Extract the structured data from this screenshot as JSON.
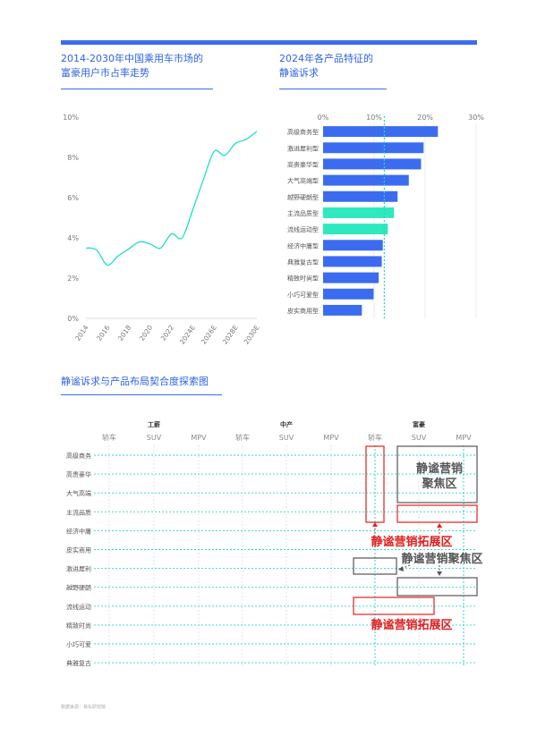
{
  "page": {
    "source_note": "数据来源：易车研究院"
  },
  "chart_data": [
    {
      "type": "line",
      "title": "2014-2030年中国乘用车市场的富豪用户市占率走势",
      "title_lines": [
        "2014-2030年中国乘用车市场的",
        "富豪用户市占率走势"
      ],
      "x_ticks": [
        "2014",
        "2016",
        "2018",
        "2020",
        "2022",
        "2024E",
        "2026E",
        "2028E",
        "2030E"
      ],
      "y_ticks": [
        "0%",
        "2%",
        "4%",
        "6%",
        "8%",
        "10%"
      ],
      "ylim": [
        0,
        10
      ],
      "color": "#1ee0c0",
      "points": [
        [
          2014,
          3.5
        ],
        [
          2015,
          3.4
        ],
        [
          2016,
          2.65
        ],
        [
          2017,
          3.1
        ],
        [
          2018,
          3.45
        ],
        [
          2019,
          3.8
        ],
        [
          2020,
          3.7
        ],
        [
          2021,
          3.5
        ],
        [
          2022,
          4.2
        ],
        [
          2023,
          4.0
        ],
        [
          2024,
          5.4
        ],
        [
          2025,
          6.9
        ],
        [
          2026,
          8.3
        ],
        [
          2027,
          8.1
        ],
        [
          2028,
          8.7
        ],
        [
          2029,
          8.9
        ],
        [
          2030,
          9.3
        ]
      ]
    },
    {
      "type": "bar",
      "orientation": "horizontal",
      "title": "2024年各产品特征的静谧诉求",
      "title_lines": [
        "2024年各产品特征的",
        "静谧诉求"
      ],
      "x_ticks": [
        "0%",
        "10%",
        "20%",
        "30%"
      ],
      "xlim": [
        0,
        30
      ],
      "reference_line": 12,
      "default_color": "#3b6cf0",
      "highlight_color": "#2ee8c0",
      "categories": [
        "高级商务型",
        "激进犀利型",
        "高贵豪华型",
        "大气高端型",
        "越野硬朗型",
        "主流品质型",
        "流线运动型",
        "经济中庸型",
        "典雅复古型",
        "精致时尚型",
        "小巧可爱型",
        "皮实商用型"
      ],
      "values": [
        22.5,
        19.7,
        19.2,
        16.8,
        14.6,
        13.9,
        12.7,
        11.7,
        11.5,
        10.9,
        9.9,
        7.6
      ],
      "highlighted": [
        false,
        false,
        false,
        false,
        false,
        true,
        true,
        false,
        false,
        false,
        false,
        false
      ]
    },
    {
      "type": "table",
      "title": "静谧诉求与产品布局契合度探索图",
      "groups": [
        "工薪",
        "中产",
        "富豪"
      ],
      "columns": [
        "轿车",
        "SUV",
        "MPV",
        "轿车",
        "SUV",
        "MPV",
        "轿车",
        "SUV",
        "MPV"
      ],
      "rows": [
        "高级商务",
        "高贵豪华",
        "大气高端",
        "主流品质",
        "经济中庸",
        "皮实商用",
        "激进犀利",
        "越野硬朗",
        "流线运动",
        "精致时尚",
        "小巧可爱",
        "典雅复古"
      ],
      "annotations": {
        "focus_top": "静谧营销聚焦区",
        "focus_top_lines": [
          "静谧营销",
          "聚焦区"
        ],
        "expand_top": "静谧营销拓展区",
        "focus_mid": "静谧营销聚焦区",
        "expand_bottom": "静谧营销拓展区"
      },
      "colors": {
        "grid": "#2ed5c8",
        "focus": "#555555",
        "expand": "#e02020"
      }
    }
  ]
}
